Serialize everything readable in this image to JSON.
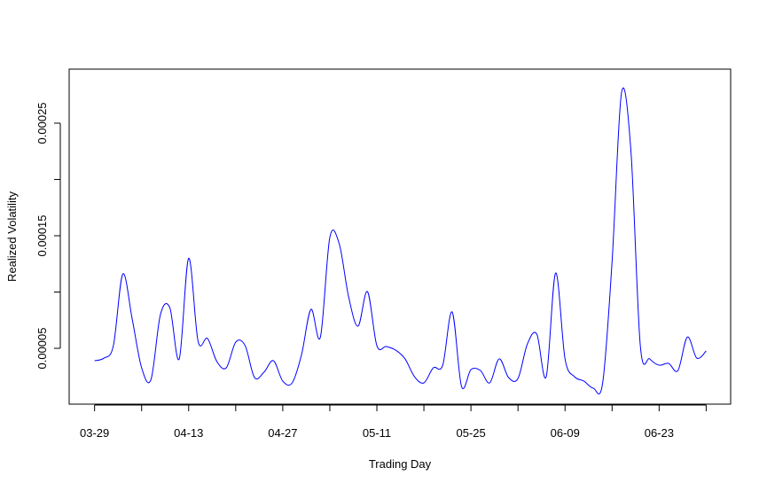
{
  "chart_data": {
    "type": "line",
    "x_label": "Trading Day",
    "y_label": "Realized Volatility",
    "x": [
      0,
      1,
      2,
      3,
      4,
      5,
      6,
      7,
      8,
      9,
      10,
      11,
      12,
      13,
      14,
      15,
      16,
      17,
      18,
      19,
      20,
      21,
      22,
      23,
      24,
      25,
      26,
      27,
      28,
      29,
      30,
      31,
      32,
      33,
      34,
      35,
      36,
      37,
      38,
      39,
      40,
      41,
      42,
      43,
      44,
      45,
      46,
      47,
      48,
      49,
      50,
      51,
      52,
      53,
      54,
      55,
      56,
      57,
      58,
      59,
      60,
      61,
      62,
      63,
      64,
      65
    ],
    "series": [
      {
        "color": "#0000ff",
        "values": [
          3.9e-05,
          4.13e-05,
          5.24e-05,
          0.000116,
          7.6e-05,
          3.27e-05,
          2.24e-05,
          8e-05,
          8.6e-05,
          4.06e-05,
          0.00013,
          5.63e-05,
          5.87e-05,
          3.82e-05,
          3.27e-05,
          5.55e-05,
          5.24e-05,
          2.4e-05,
          2.87e-05,
          3.9e-05,
          2.09e-05,
          1.93e-05,
          4.45e-05,
          8.46e-05,
          6e-05,
          0.0001484,
          0.0001429,
          9.57e-05,
          6.97e-05,
          0.0001004,
          5.24e-05,
          5.16e-05,
          4.84e-05,
          4.06e-05,
          2.48e-05,
          1.93e-05,
          3.27e-05,
          3.5e-05,
          8.23e-05,
          1.61e-05,
          3.11e-05,
          3.03e-05,
          1.93e-05,
          4.06e-05,
          2.4e-05,
          2.32e-05,
          5.39e-05,
          6.26e-05,
          2.48e-05,
          0.0001169,
          4.06e-05,
          2.48e-05,
          2.09e-05,
          1.46e-05,
          1.93e-05,
          0.0001272,
          0.0002768,
          0.0002256,
          5.24e-05,
          4.06e-05,
          3.5e-05,
          3.66e-05,
          3.03e-05,
          6e-05,
          4.13e-05,
          4.76e-05
        ]
      }
    ],
    "xlim": [
      -2.7,
      67.6
    ],
    "xticks": [
      {
        "value": 0,
        "label": "03-29"
      },
      {
        "value": 5,
        "label": null
      },
      {
        "value": 10,
        "label": "04-13"
      },
      {
        "value": 15,
        "label": null
      },
      {
        "value": 20,
        "label": "04-27"
      },
      {
        "value": 25,
        "label": null
      },
      {
        "value": 30,
        "label": "05-11"
      },
      {
        "value": 35,
        "label": null
      },
      {
        "value": 40,
        "label": "05-25"
      },
      {
        "value": 45,
        "label": null
      },
      {
        "value": 50,
        "label": "06-09"
      },
      {
        "value": 55,
        "label": null
      },
      {
        "value": 60,
        "label": "06-23"
      },
      {
        "value": 65,
        "label": null
      }
    ],
    "ylim": [
      4e-07,
      0.000298
    ],
    "yticks": [
      {
        "value": 5e-05,
        "label": "0.00005"
      },
      {
        "value": 0.0001,
        "label": null
      },
      {
        "value": 0.00015,
        "label": "0.00015"
      },
      {
        "value": 0.0002,
        "label": null
      },
      {
        "value": 0.00025,
        "label": "0.00025"
      }
    ]
  }
}
